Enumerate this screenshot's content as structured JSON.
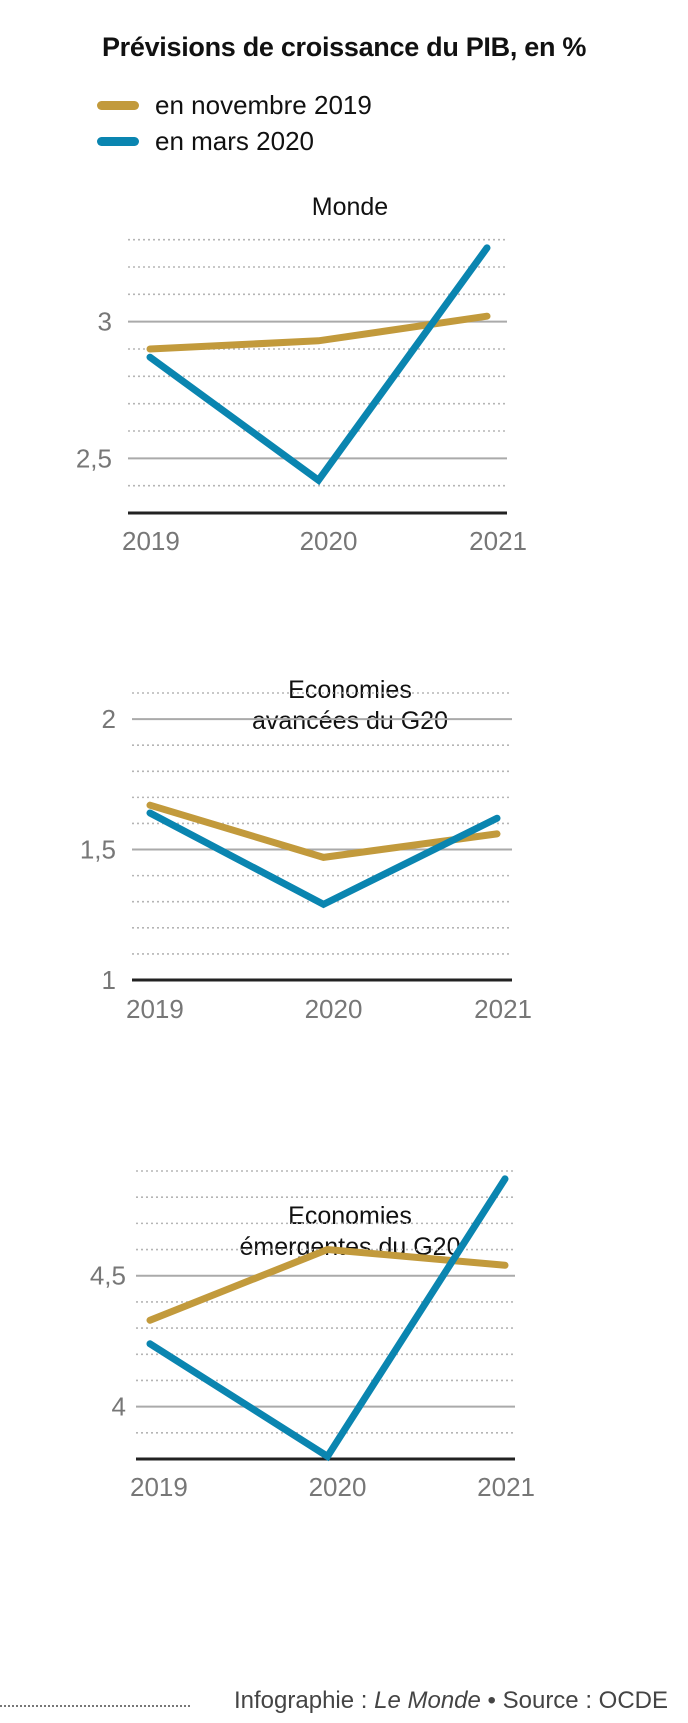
{
  "title": "Prévisions de croissance du PIB, en %",
  "legend": [
    {
      "label": "en novembre 2019",
      "color": "#c29a3c"
    },
    {
      "label": "en mars 2020",
      "color": "#0a85b0"
    }
  ],
  "chart_data": [
    {
      "type": "line",
      "title": "Monde",
      "categories": [
        "2019",
        "2020",
        "2021"
      ],
      "ylim": [
        2.3,
        3.35
      ],
      "yticks": [
        2.5,
        3
      ],
      "ytick_labels": [
        "2,5",
        "3"
      ],
      "series": [
        {
          "name": "en novembre 2019",
          "values": [
            2.9,
            2.93,
            3.02
          ]
        },
        {
          "name": "en mars 2020",
          "values": [
            2.87,
            2.42,
            3.27
          ]
        }
      ]
    },
    {
      "type": "line",
      "title": "Economies avancées du G20",
      "categories": [
        "2019",
        "2020",
        "2021"
      ],
      "ylim": [
        1.0,
        2.1
      ],
      "yticks": [
        1,
        1.5,
        2
      ],
      "ytick_labels": [
        "1",
        "1,5",
        "2"
      ],
      "series": [
        {
          "name": "en novembre 2019",
          "values": [
            1.67,
            1.47,
            1.56
          ]
        },
        {
          "name": "en mars 2020",
          "values": [
            1.64,
            1.29,
            1.62
          ]
        }
      ]
    },
    {
      "type": "line",
      "title": "Economies émergentes du G20",
      "categories": [
        "2019",
        "2020",
        "2021"
      ],
      "ylim": [
        3.8,
        4.9
      ],
      "yticks": [
        4,
        4.5
      ],
      "ytick_labels": [
        "4",
        "4,5"
      ],
      "series": [
        {
          "name": "en novembre 2019",
          "values": [
            4.33,
            4.6,
            4.54
          ]
        },
        {
          "name": "en mars 2020",
          "values": [
            4.24,
            3.81,
            4.87
          ]
        }
      ]
    }
  ],
  "footer": {
    "prefix": "Infographie : ",
    "publication": "Le Monde",
    "separator": " • ",
    "source": "Source : OCDE"
  }
}
